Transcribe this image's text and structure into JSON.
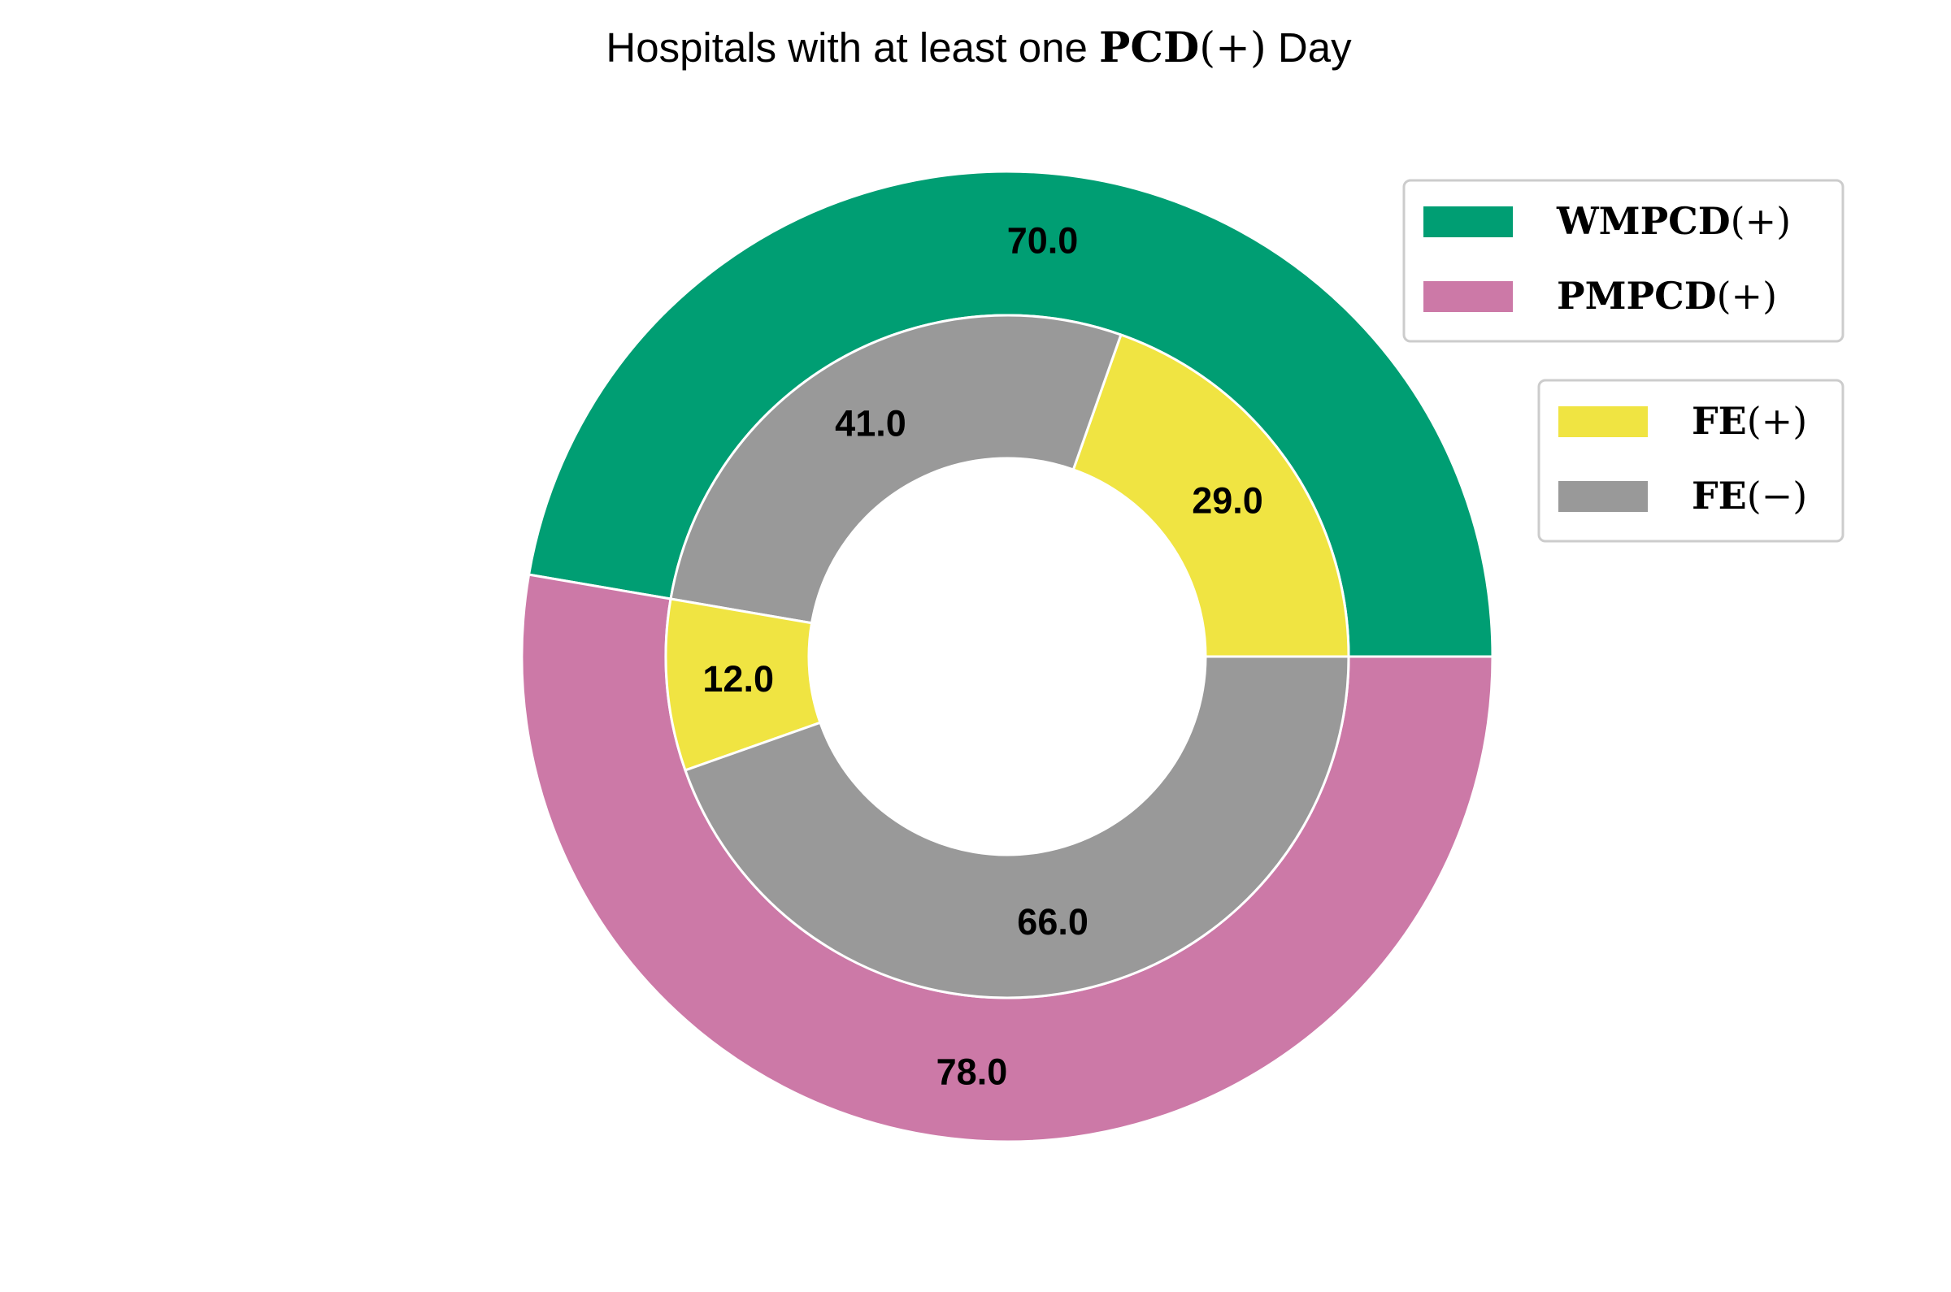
{
  "chart_data": {
    "type": "pie",
    "variant": "nested-donut",
    "title": {
      "prefix": "Hospitals with at least one ",
      "math_bold": "PCD",
      "math_paren": "(+)",
      "suffix": " Day"
    },
    "outer_ring": {
      "start_angle_deg": 0,
      "slices": [
        {
          "label_bold": "WMPCD",
          "label_paren": "(+)",
          "value": 70.0,
          "display": "70.0",
          "color": "#009E73"
        },
        {
          "label_bold": "PMPCD",
          "label_paren": "(+)",
          "value": 78.0,
          "display": "78.0",
          "color": "#CC79A7"
        }
      ]
    },
    "inner_ring": {
      "slices": [
        {
          "group": "WMPCD(+)",
          "category": "FE(+)",
          "value": 29.0,
          "display": "29.0",
          "color": "#F0E442"
        },
        {
          "group": "WMPCD(+)",
          "category": "FE(−)",
          "value": 41.0,
          "display": "41.0",
          "color": "#999999"
        },
        {
          "group": "PMPCD(+)",
          "category": "FE(+)",
          "value": 12.0,
          "display": "12.0",
          "color": "#F0E442"
        },
        {
          "group": "PMPCD(+)",
          "category": "FE(−)",
          "value": 66.0,
          "display": "66.0",
          "color": "#999999"
        }
      ]
    },
    "legends": [
      {
        "placement": "upper-right",
        "entries": [
          {
            "label_bold": "WMPCD",
            "label_paren": "(+)",
            "color": "#009E73"
          },
          {
            "label_bold": "PMPCD",
            "label_paren": "(+)",
            "color": "#CC79A7"
          }
        ]
      },
      {
        "placement": "right",
        "entries": [
          {
            "label_bold": "FE",
            "label_paren": "(+)",
            "color": "#F0E442"
          },
          {
            "label_bold": "FE",
            "label_paren": "(−)",
            "color": "#999999"
          }
        ]
      }
    ],
    "edge_color": "#ffffff"
  }
}
